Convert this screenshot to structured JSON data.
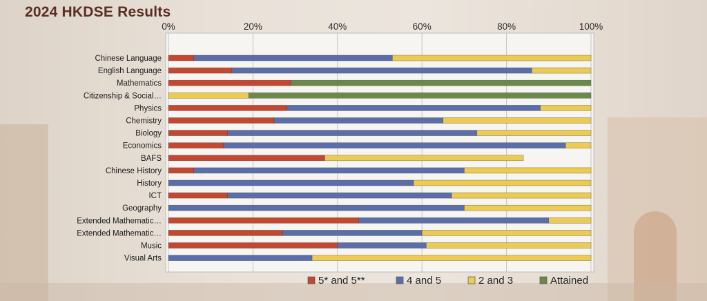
{
  "title": "2024 HKDSE Results",
  "chart_data": {
    "type": "bar",
    "orientation": "horizontal",
    "stacked": true,
    "title": "2024 HKDSE Results",
    "xlabel": "",
    "ylabel": "",
    "xlim": [
      0,
      100
    ],
    "x_ticks": [
      "0%",
      "20%",
      "40%",
      "60%",
      "80%",
      "100%"
    ],
    "grid": true,
    "legend_position": "bottom",
    "categories": [
      "Chinese Language",
      "English Language",
      "Mathematics",
      "Citizenship & Social…",
      "Physics",
      "Chemistry",
      "Biology",
      "Economics",
      "BAFS",
      "Chinese History",
      "History",
      "ICT",
      "Geography",
      "Extended Mathematic…",
      "Extended Mathematic…",
      "Music",
      "Visual Arts"
    ],
    "series": [
      {
        "name": "5* and 5**",
        "color": "#c44731",
        "values": [
          6,
          15,
          29,
          0,
          28,
          25,
          14,
          13,
          37,
          6,
          0,
          14,
          0,
          45,
          27,
          40,
          0
        ]
      },
      {
        "name": "4 and 5",
        "color": "#5b6ea8",
        "values": [
          47,
          71,
          0,
          0,
          60,
          40,
          59,
          81,
          0,
          64,
          58,
          53,
          70,
          45,
          33,
          21,
          34
        ]
      },
      {
        "name": "2 and 3",
        "color": "#eccb52",
        "values": [
          47,
          14,
          0,
          19,
          12,
          35,
          27,
          6,
          47,
          30,
          42,
          33,
          30,
          10,
          40,
          39,
          66
        ]
      },
      {
        "name": "Attained",
        "color": "#6b8a4a",
        "values": [
          0,
          0,
          71,
          81,
          0,
          0,
          0,
          0,
          0,
          0,
          0,
          0,
          0,
          0,
          0,
          0,
          0
        ]
      }
    ]
  }
}
